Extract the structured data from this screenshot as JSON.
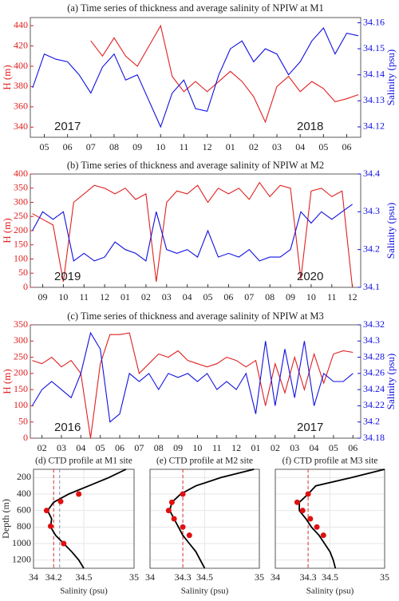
{
  "chart_data": [
    {
      "type": "timeseries",
      "title": "(a) Time series of thickness and average salinity of NPIW at M1",
      "ylabel": "H (m)",
      "y2label": "Salinity (psu)",
      "xlim": [
        -0.6,
        13.6
      ],
      "xticks": [
        {
          "value": 0,
          "label": "05"
        },
        {
          "value": 1,
          "label": "06"
        },
        {
          "value": 2,
          "label": "07"
        },
        {
          "value": 3,
          "label": "08"
        },
        {
          "value": 4,
          "label": "09"
        },
        {
          "value": 5,
          "label": "10"
        },
        {
          "value": 6,
          "label": "11"
        },
        {
          "value": 7,
          "label": "12"
        },
        {
          "value": 8,
          "label": "01"
        },
        {
          "value": 9,
          "label": "02"
        },
        {
          "value": 10,
          "label": "03"
        },
        {
          "value": 11,
          "label": "04"
        },
        {
          "value": 12,
          "label": "05"
        },
        {
          "value": 13,
          "label": "06"
        }
      ],
      "ylim": [
        330,
        448
      ],
      "yticks": [
        340,
        360,
        380,
        400,
        420,
        440
      ],
      "y2lim": [
        34.116,
        34.162
      ],
      "y2ticks": [
        34.12,
        34.13,
        34.14,
        34.15,
        34.16
      ],
      "annotations": [
        "2017",
        "2018"
      ],
      "x": [
        -0.5,
        0,
        0.5,
        1,
        1.5,
        2,
        2.5,
        3,
        3.5,
        4,
        4.5,
        5,
        5.5,
        6,
        6.5,
        7,
        7.5,
        8,
        8.5,
        9,
        9.5,
        10,
        10.5,
        11,
        11.5,
        12,
        12.5,
        13,
        13.5
      ],
      "series": [
        {
          "name": "H",
          "color": "#e02020",
          "axis": "y",
          "values": [
            null,
            null,
            null,
            null,
            null,
            425,
            410,
            428,
            410,
            400,
            420,
            440,
            390,
            375,
            385,
            375,
            385,
            395,
            385,
            370,
            345,
            380,
            390,
            375,
            385,
            378,
            365,
            368,
            372
          ]
        },
        {
          "name": "Salinity",
          "color": "#1010e0",
          "axis": "y2",
          "values": [
            34.135,
            34.148,
            34.146,
            34.145,
            34.14,
            34.133,
            34.143,
            34.148,
            34.138,
            34.14,
            34.13,
            34.12,
            34.133,
            34.138,
            34.127,
            34.126,
            34.14,
            34.15,
            34.153,
            34.145,
            34.15,
            34.148,
            34.14,
            34.145,
            34.153,
            34.158,
            34.148,
            34.156,
            34.155
          ]
        }
      ]
    },
    {
      "type": "timeseries",
      "title": "(b) Time series of thickness and average salinity of NPIW at M2",
      "ylabel": "H (m)",
      "y2label": "Salinity (psu)",
      "xlim": [
        -0.6,
        15.4
      ],
      "xticks": [
        {
          "value": 0,
          "label": "09"
        },
        {
          "value": 1,
          "label": "10"
        },
        {
          "value": 2,
          "label": "11"
        },
        {
          "value": 3,
          "label": "12"
        },
        {
          "value": 4,
          "label": "01"
        },
        {
          "value": 5,
          "label": "02"
        },
        {
          "value": 6,
          "label": "03"
        },
        {
          "value": 7,
          "label": "04"
        },
        {
          "value": 8,
          "label": "05"
        },
        {
          "value": 9,
          "label": "06"
        },
        {
          "value": 10,
          "label": "07"
        },
        {
          "value": 11,
          "label": "08"
        },
        {
          "value": 12,
          "label": "09"
        },
        {
          "value": 13,
          "label": "10"
        },
        {
          "value": 14,
          "label": "11"
        },
        {
          "value": 15,
          "label": "12"
        }
      ],
      "ylim": [
        0,
        400
      ],
      "yticks": [
        0,
        50,
        100,
        150,
        200,
        250,
        300,
        350,
        400
      ],
      "y2lim": [
        34.1,
        34.4
      ],
      "y2ticks": [
        34.1,
        34.2,
        34.3,
        34.4
      ],
      "annotations": [
        "2019",
        "2020"
      ],
      "x": [
        -0.5,
        0,
        0.5,
        1,
        1.5,
        2,
        2.5,
        3,
        3.5,
        4,
        4.5,
        5,
        5.5,
        6,
        6.5,
        7,
        7.5,
        8,
        8.5,
        9,
        9.5,
        10,
        10.5,
        11,
        11.5,
        12,
        12.5,
        13,
        13.5,
        14,
        14.5,
        15
      ],
      "series": [
        {
          "name": "H",
          "color": "#e02020",
          "axis": "y",
          "values": [
            260,
            240,
            220,
            20,
            300,
            330,
            360,
            350,
            330,
            350,
            310,
            330,
            20,
            300,
            340,
            330,
            360,
            300,
            350,
            330,
            350,
            310,
            370,
            320,
            360,
            350,
            30,
            340,
            350,
            320,
            340,
            0
          ]
        },
        {
          "name": "Salinity",
          "color": "#1010e0",
          "axis": "y2",
          "values": [
            34.25,
            34.3,
            34.28,
            34.3,
            34.17,
            34.19,
            34.17,
            34.18,
            34.22,
            34.2,
            34.19,
            34.17,
            34.3,
            34.2,
            34.19,
            34.2,
            34.18,
            34.25,
            34.18,
            34.19,
            34.18,
            34.2,
            34.17,
            34.18,
            34.18,
            34.2,
            34.3,
            34.27,
            34.3,
            34.28,
            34.3,
            34.32
          ]
        }
      ]
    },
    {
      "type": "timeseries",
      "title": "(c) Time series of thickness and average salinity of NPIW at M3",
      "ylabel": "H (m)",
      "y2label": "Salinity (psu)",
      "xlim": [
        -0.6,
        16.4
      ],
      "xticks": [
        {
          "value": 0,
          "label": "02"
        },
        {
          "value": 1,
          "label": "03"
        },
        {
          "value": 2,
          "label": "04"
        },
        {
          "value": 3,
          "label": "05"
        },
        {
          "value": 4,
          "label": "06"
        },
        {
          "value": 5,
          "label": "07"
        },
        {
          "value": 6,
          "label": "08"
        },
        {
          "value": 7,
          "label": "09"
        },
        {
          "value": 8,
          "label": "10"
        },
        {
          "value": 9,
          "label": "11"
        },
        {
          "value": 10,
          "label": "12"
        },
        {
          "value": 11,
          "label": "01"
        },
        {
          "value": 12,
          "label": "02"
        },
        {
          "value": 13,
          "label": "03"
        },
        {
          "value": 14,
          "label": "04"
        },
        {
          "value": 15,
          "label": "05"
        },
        {
          "value": 16,
          "label": "06"
        }
      ],
      "ylim": [
        0,
        350
      ],
      "yticks": [
        0,
        50,
        100,
        150,
        200,
        250,
        300,
        350
      ],
      "y2lim": [
        34.18,
        34.32
      ],
      "y2ticks": [
        34.18,
        34.2,
        34.22,
        34.24,
        34.26,
        34.28,
        34.3,
        34.32
      ],
      "annotations": [
        "2016",
        "2017"
      ],
      "x": [
        -0.5,
        0,
        0.5,
        1,
        1.5,
        2,
        2.5,
        3,
        3.5,
        4,
        4.5,
        5,
        5.5,
        6,
        6.5,
        7,
        7.5,
        8,
        8.5,
        9,
        9.5,
        10,
        10.5,
        11,
        11.5,
        12,
        12.5,
        13,
        13.5,
        14,
        14.5,
        15,
        15.5,
        16
      ],
      "series": [
        {
          "name": "H",
          "color": "#e02020",
          "axis": "y",
          "values": [
            240,
            230,
            250,
            220,
            240,
            200,
            0,
            230,
            320,
            320,
            325,
            200,
            230,
            260,
            250,
            270,
            240,
            230,
            220,
            230,
            250,
            240,
            220,
            240,
            100,
            230,
            140,
            250,
            150,
            260,
            170,
            260,
            270,
            265
          ]
        },
        {
          "name": "Salinity",
          "color": "#1010e0",
          "axis": "y2",
          "values": [
            34.22,
            34.24,
            34.25,
            34.24,
            34.23,
            34.26,
            34.31,
            34.29,
            34.2,
            34.21,
            34.26,
            34.25,
            34.26,
            34.24,
            34.26,
            34.255,
            34.26,
            34.25,
            34.26,
            34.24,
            34.25,
            34.24,
            34.26,
            34.21,
            34.3,
            34.22,
            34.29,
            34.23,
            34.3,
            34.22,
            34.26,
            34.25,
            34.25,
            34.26
          ]
        }
      ]
    },
    {
      "type": "profile",
      "title": "(d) CTD profile at M1 site",
      "xlabel": "Salinity (psu)",
      "ylabel": "Depth (m)",
      "xlim": [
        34,
        35
      ],
      "xticks": [
        34,
        34.2,
        34.5,
        35
      ],
      "ylim": [
        1300,
        100
      ],
      "yticks": [
        200,
        400,
        600,
        800,
        1000,
        1200
      ],
      "depth": [
        100,
        200,
        300,
        400,
        500,
        600,
        700,
        800,
        900,
        1000,
        1100,
        1200,
        1300
      ],
      "values": [
        34.92,
        34.75,
        34.55,
        34.35,
        34.2,
        34.14,
        34.18,
        34.17,
        34.22,
        34.3,
        34.38,
        34.45,
        34.5
      ],
      "points": [
        {
          "x": 34.45,
          "y": 400
        },
        {
          "x": 34.27,
          "y": 490
        },
        {
          "x": 34.13,
          "y": 600
        },
        {
          "x": 34.17,
          "y": 790
        },
        {
          "x": 34.3,
          "y": 1000
        }
      ],
      "vlines": [
        {
          "value": 34.2,
          "color": "#e03030"
        },
        {
          "value": 34.26,
          "color": "#8888aa"
        }
      ]
    },
    {
      "type": "profile",
      "title": "(e) CTD profile at M2 site",
      "xlabel": "Salinity (psu)",
      "xlim": [
        34,
        35
      ],
      "xticks": [
        34,
        34.3,
        34.5,
        35
      ],
      "ylim": [
        1300,
        100
      ],
      "yticks": [
        200,
        400,
        600,
        800,
        1000,
        1200
      ],
      "depth": [
        100,
        200,
        300,
        400,
        500,
        600,
        700,
        800,
        900,
        1000,
        1100,
        1200,
        1300
      ],
      "values": [
        34.95,
        34.65,
        34.42,
        34.28,
        34.2,
        34.18,
        34.22,
        34.26,
        34.3,
        34.36,
        34.42,
        34.46,
        34.5
      ],
      "points": [
        {
          "x": 34.3,
          "y": 400
        },
        {
          "x": 34.2,
          "y": 500
        },
        {
          "x": 34.17,
          "y": 600
        },
        {
          "x": 34.22,
          "y": 700
        },
        {
          "x": 34.3,
          "y": 800
        },
        {
          "x": 34.36,
          "y": 900
        }
      ],
      "vlines": [
        {
          "value": 34.3,
          "color": "#e03030"
        }
      ]
    },
    {
      "type": "profile",
      "title": "(f) CTD profile at M3 site",
      "xlabel": "Salinity (psu)",
      "xlim": [
        34,
        35
      ],
      "xticks": [
        34,
        34.3,
        34.5,
        35
      ],
      "ylim": [
        1300,
        100
      ],
      "yticks": [
        200,
        400,
        600,
        800,
        1000,
        1200
      ],
      "depth": [
        100,
        200,
        300,
        400,
        500,
        600,
        700,
        800,
        900,
        1000,
        1100,
        1200,
        1300
      ],
      "values": [
        35.0,
        34.7,
        34.37,
        34.3,
        34.22,
        34.22,
        34.28,
        34.33,
        34.4,
        34.45,
        34.5,
        34.53,
        34.55
      ],
      "points": [
        {
          "x": 34.3,
          "y": 400
        },
        {
          "x": 34.2,
          "y": 500
        },
        {
          "x": 34.25,
          "y": 600
        },
        {
          "x": 34.32,
          "y": 700
        },
        {
          "x": 34.38,
          "y": 800
        },
        {
          "x": 34.44,
          "y": 900
        }
      ],
      "vlines": [
        {
          "value": 34.3,
          "color": "#e03030"
        }
      ]
    }
  ]
}
